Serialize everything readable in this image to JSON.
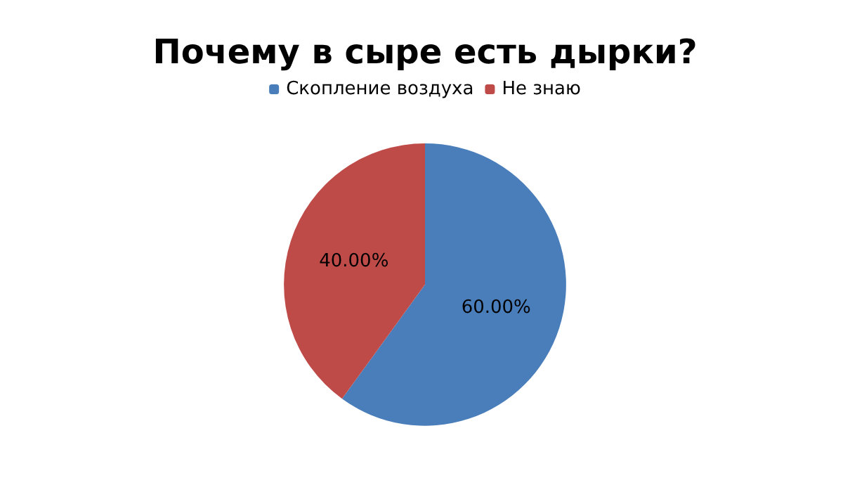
{
  "chart_data": {
    "type": "pie",
    "title": "Почему в сыре есть дырки?",
    "categories": [
      "Скопление воздуха",
      "Не знаю"
    ],
    "values": [
      60,
      40
    ],
    "colors": [
      "#4a7ebb",
      "#be4b48"
    ],
    "value_labels": [
      "60.00%",
      "40.00%"
    ],
    "legend": "top"
  }
}
